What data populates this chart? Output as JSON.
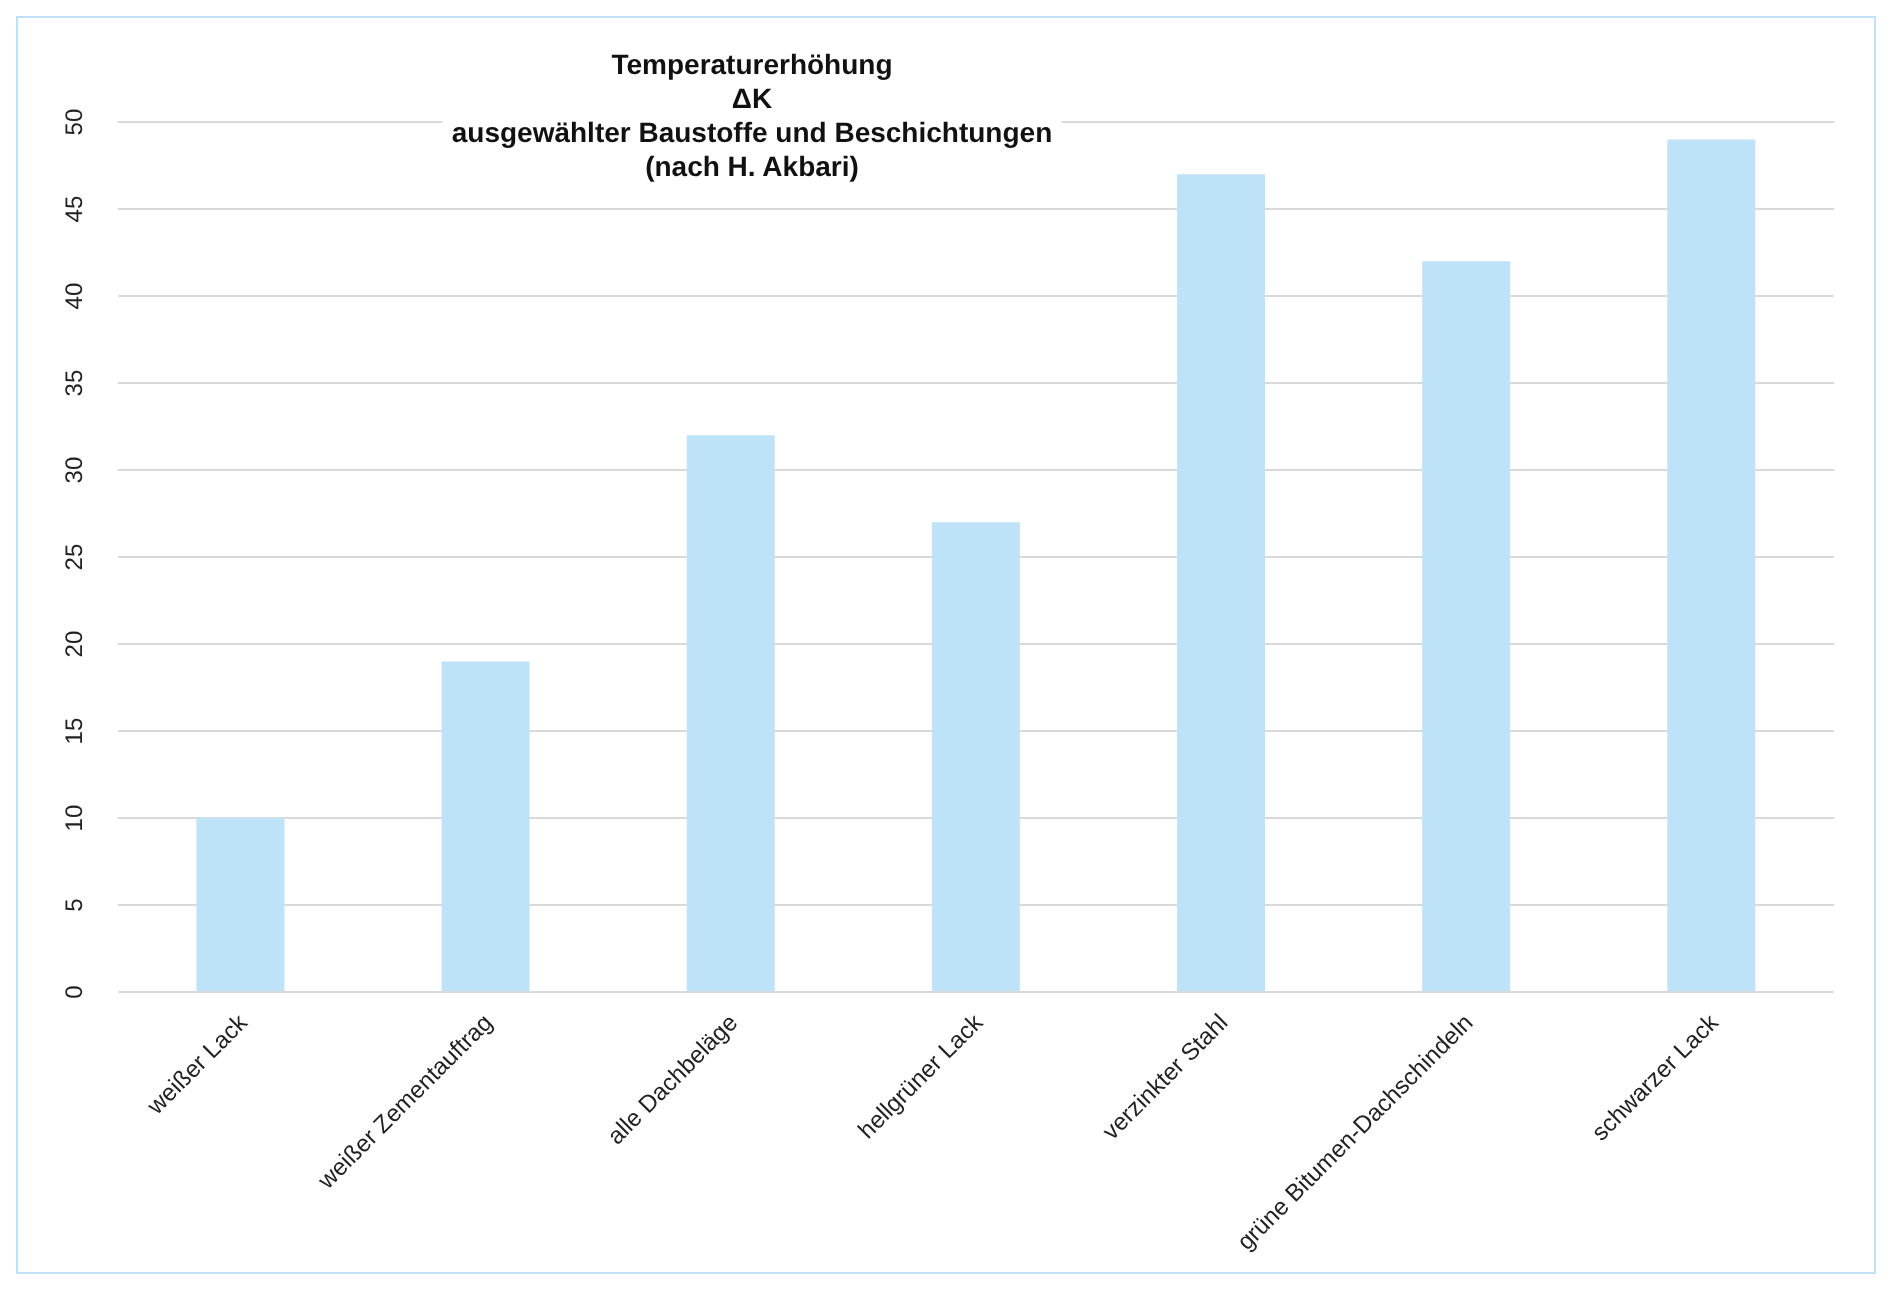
{
  "chart_data": {
    "type": "bar",
    "title": "Temperaturerhöhung\nΔK\nausgewählter Baustoffe und Beschichtungen\n(nach H. Akbari)",
    "categories": [
      "weißer Lack",
      "weißer Zementauftrag",
      "alle Dachbeläge",
      "hellgrüner Lack",
      "verzinkter Stahl",
      "grüne Bitumen-Dachschindeln",
      "schwarzer Lack"
    ],
    "values": [
      10,
      19,
      32,
      27,
      47,
      42,
      49
    ],
    "color": "#bee3f8",
    "ylim": [
      0,
      50
    ],
    "yticks": [
      0,
      5,
      10,
      15,
      20,
      25,
      30,
      35,
      40,
      45,
      50
    ],
    "grid": "y"
  }
}
